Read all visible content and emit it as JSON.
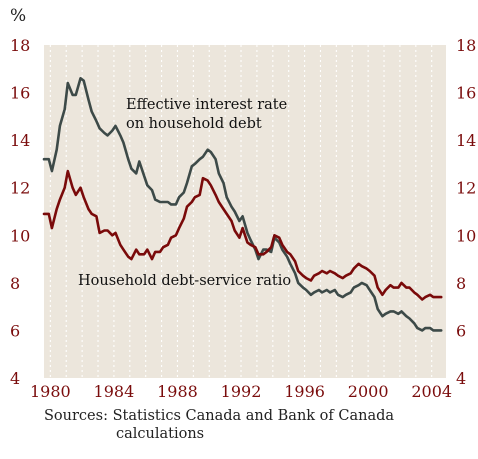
{
  "chart_data": {
    "type": "line",
    "unit_label": "%",
    "xlim": [
      1979.6,
      2004.9
    ],
    "ylim": [
      4,
      18
    ],
    "x_ticks": [
      1980,
      1984,
      1988,
      1992,
      1996,
      2000,
      2004
    ],
    "y_ticks": [
      4,
      6,
      8,
      10,
      12,
      14,
      16,
      18
    ],
    "grid": "vertical dashed lines at each year",
    "colors": {
      "text": "#7a0c0c",
      "panel": "#ece6dc",
      "series_interest": "#3d4a48",
      "series_dsr": "#7a0a0a"
    },
    "series": [
      {
        "name": "Effective interest rate on household debt",
        "label_line1": "Effective interest rate",
        "label_line2": "on household debt",
        "x": [
          1979.6,
          1979.9,
          1980.1,
          1980.4,
          1980.6,
          1980.9,
          1981.1,
          1981.4,
          1981.6,
          1981.9,
          1982.1,
          1982.4,
          1982.6,
          1982.9,
          1983.1,
          1983.4,
          1983.6,
          1983.9,
          1984.1,
          1984.4,
          1984.6,
          1984.9,
          1985.1,
          1985.4,
          1985.6,
          1985.9,
          1986.1,
          1986.4,
          1986.6,
          1986.9,
          1987.1,
          1987.4,
          1987.6,
          1987.9,
          1988.1,
          1988.4,
          1988.6,
          1988.9,
          1989.1,
          1989.4,
          1989.6,
          1989.9,
          1990.1,
          1990.4,
          1990.6,
          1990.9,
          1991.1,
          1991.4,
          1991.6,
          1991.9,
          1992.1,
          1992.4,
          1992.6,
          1992.9,
          1993.1,
          1993.4,
          1993.6,
          1993.9,
          1994.1,
          1994.4,
          1994.6,
          1994.9,
          1995.1,
          1995.4,
          1995.6,
          1995.9,
          1996.1,
          1996.4,
          1996.6,
          1996.9,
          1997.1,
          1997.4,
          1997.6,
          1997.9,
          1998.1,
          1998.4,
          1998.6,
          1998.9,
          1999.1,
          1999.4,
          1999.6,
          1999.9,
          2000.1,
          2000.4,
          2000.6,
          2000.9,
          2001.1,
          2001.4,
          2001.6,
          2001.9,
          2002.1,
          2002.4,
          2002.6,
          2002.9,
          2003.1,
          2003.4,
          2003.6,
          2003.9,
          2004.1,
          2004.4,
          2004.6
        ],
        "values": [
          13.2,
          13.2,
          12.7,
          13.6,
          14.6,
          15.3,
          16.4,
          15.9,
          15.9,
          16.6,
          16.5,
          15.7,
          15.2,
          14.8,
          14.5,
          14.3,
          14.2,
          14.4,
          14.6,
          14.2,
          13.9,
          13.2,
          12.8,
          12.6,
          13.1,
          12.5,
          12.1,
          11.9,
          11.5,
          11.4,
          11.4,
          11.4,
          11.3,
          11.3,
          11.6,
          11.8,
          12.2,
          12.9,
          13.0,
          13.2,
          13.3,
          13.6,
          13.5,
          13.2,
          12.6,
          12.2,
          11.6,
          11.2,
          11.0,
          10.6,
          10.8,
          10.1,
          9.8,
          9.4,
          9.0,
          9.4,
          9.4,
          9.3,
          9.9,
          9.7,
          9.4,
          9.1,
          8.8,
          8.4,
          8.0,
          7.8,
          7.7,
          7.5,
          7.6,
          7.7,
          7.6,
          7.7,
          7.6,
          7.7,
          7.5,
          7.4,
          7.5,
          7.6,
          7.8,
          7.9,
          8.0,
          7.9,
          7.7,
          7.4,
          6.9,
          6.6,
          6.7,
          6.8,
          6.8,
          6.7,
          6.8,
          6.6,
          6.5,
          6.3,
          6.1,
          6.0,
          6.1,
          6.1,
          6.0,
          6.0,
          6.0
        ]
      },
      {
        "name": "Household debt-service ratio",
        "label_line1": "Household debt-service ratio",
        "label_line2": "",
        "x": [
          1979.6,
          1979.9,
          1980.1,
          1980.4,
          1980.6,
          1980.9,
          1981.1,
          1981.4,
          1981.6,
          1981.9,
          1982.1,
          1982.4,
          1982.6,
          1982.9,
          1983.1,
          1983.4,
          1983.6,
          1983.9,
          1984.1,
          1984.4,
          1984.6,
          1984.9,
          1985.1,
          1985.4,
          1985.6,
          1985.9,
          1986.1,
          1986.4,
          1986.6,
          1986.9,
          1987.1,
          1987.4,
          1987.6,
          1987.9,
          1988.1,
          1988.4,
          1988.6,
          1988.9,
          1989.1,
          1989.4,
          1989.6,
          1989.9,
          1990.1,
          1990.4,
          1990.6,
          1990.9,
          1991.1,
          1991.4,
          1991.6,
          1991.9,
          1992.1,
          1992.4,
          1992.6,
          1992.9,
          1993.1,
          1993.4,
          1993.6,
          1993.9,
          1994.1,
          1994.4,
          1994.6,
          1994.9,
          1995.1,
          1995.4,
          1995.6,
          1995.9,
          1996.1,
          1996.4,
          1996.6,
          1996.9,
          1997.1,
          1997.4,
          1997.6,
          1997.9,
          1998.1,
          1998.4,
          1998.6,
          1998.9,
          1999.1,
          1999.4,
          1999.6,
          1999.9,
          2000.1,
          2000.4,
          2000.6,
          2000.9,
          2001.1,
          2001.4,
          2001.6,
          2001.9,
          2002.1,
          2002.4,
          2002.6,
          2002.9,
          2003.1,
          2003.4,
          2003.6,
          2003.9,
          2004.1,
          2004.4,
          2004.6
        ],
        "values": [
          10.9,
          10.9,
          10.3,
          11.1,
          11.5,
          12.0,
          12.7,
          12.0,
          11.7,
          12.0,
          11.6,
          11.1,
          10.9,
          10.8,
          10.1,
          10.2,
          10.2,
          10.0,
          10.1,
          9.6,
          9.4,
          9.1,
          9.0,
          9.4,
          9.2,
          9.2,
          9.4,
          9.0,
          9.3,
          9.3,
          9.5,
          9.6,
          9.9,
          10.0,
          10.3,
          10.7,
          11.2,
          11.4,
          11.6,
          11.7,
          12.4,
          12.3,
          12.1,
          11.7,
          11.4,
          11.1,
          10.9,
          10.6,
          10.2,
          9.9,
          10.3,
          9.7,
          9.6,
          9.5,
          9.2,
          9.2,
          9.3,
          9.5,
          10.0,
          9.9,
          9.6,
          9.3,
          9.2,
          8.9,
          8.5,
          8.3,
          8.2,
          8.1,
          8.3,
          8.4,
          8.5,
          8.4,
          8.5,
          8.4,
          8.3,
          8.2,
          8.3,
          8.4,
          8.6,
          8.8,
          8.7,
          8.6,
          8.5,
          8.3,
          7.8,
          7.5,
          7.7,
          7.9,
          7.8,
          7.8,
          8.0,
          7.8,
          7.8,
          7.6,
          7.5,
          7.3,
          7.4,
          7.5,
          7.4,
          7.4,
          7.4
        ]
      }
    ],
    "source_line1": "Sources: Statistics Canada and Bank of Canada",
    "source_line2": "calculations"
  }
}
